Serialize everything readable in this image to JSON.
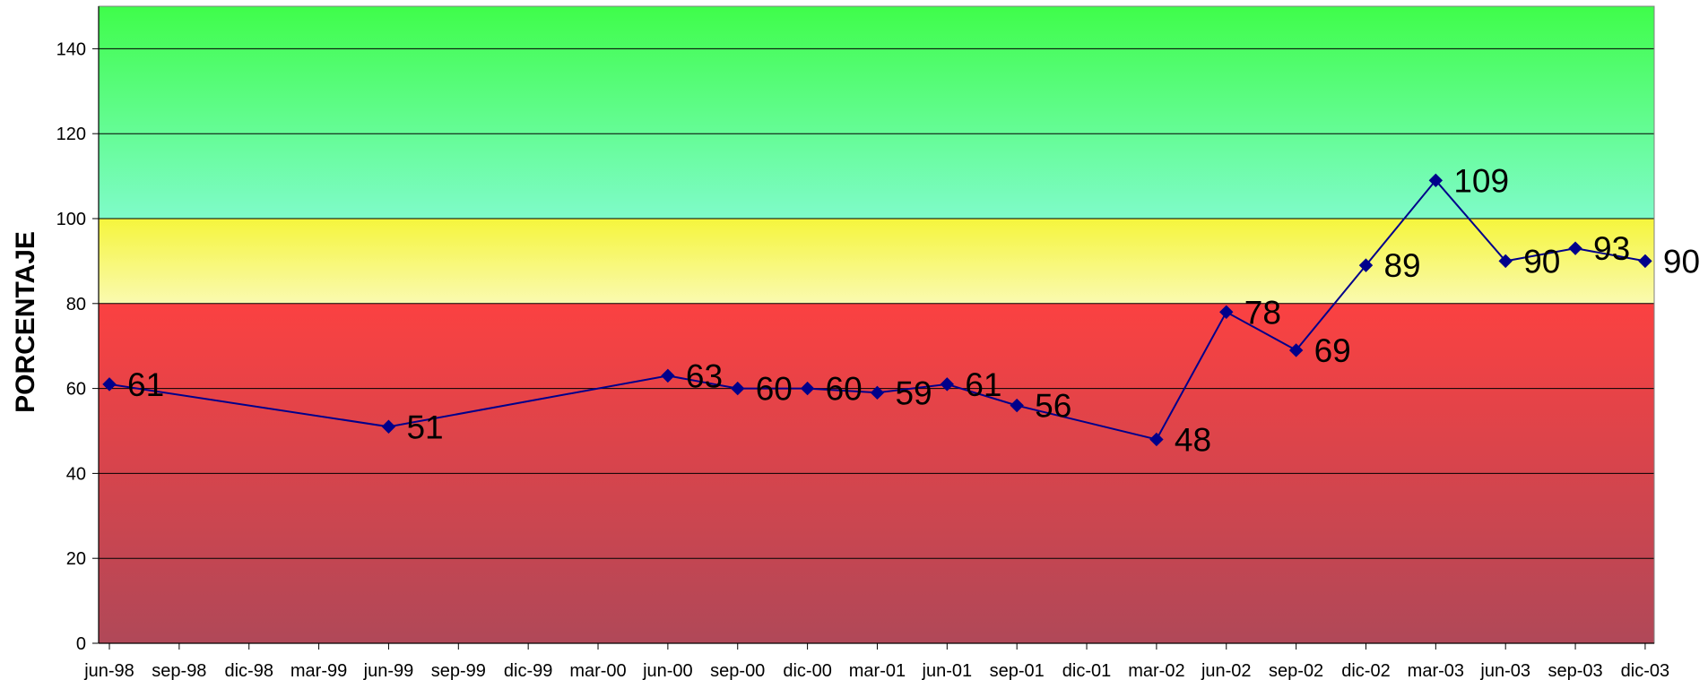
{
  "chart_data": {
    "type": "line",
    "title": "",
    "xlabel": "",
    "ylabel": "PORCENTAJE",
    "ylim": [
      0,
      150
    ],
    "yticks": [
      0,
      20,
      40,
      60,
      80,
      100,
      120,
      140
    ],
    "grid": true,
    "legend": "none",
    "categories": [
      "jun-98",
      "sep-98",
      "dic-98",
      "mar-99",
      "jun-99",
      "sep-99",
      "dic-99",
      "mar-00",
      "jun-00",
      "sep-00",
      "dic-00",
      "mar-01",
      "jun-01",
      "sep-01",
      "dic-01",
      "mar-02",
      "jun-02",
      "sep-02",
      "dic-02",
      "mar-03",
      "jun-03",
      "sep-03",
      "dic-03"
    ],
    "series": [
      {
        "color": "#00008b",
        "marker": "diamond",
        "points": [
          {
            "x": "jun-98",
            "y": 61
          },
          {
            "x": "jun-99",
            "y": 51
          },
          {
            "x": "jun-00",
            "y": 63
          },
          {
            "x": "sep-00",
            "y": 60
          },
          {
            "x": "dic-00",
            "y": 60
          },
          {
            "x": "mar-01",
            "y": 59
          },
          {
            "x": "jun-01",
            "y": 61
          },
          {
            "x": "sep-01",
            "y": 56
          },
          {
            "x": "mar-02",
            "y": 48
          },
          {
            "x": "jun-02",
            "y": 78
          },
          {
            "x": "sep-02",
            "y": 69
          },
          {
            "x": "dic-02",
            "y": 89
          },
          {
            "x": "mar-03",
            "y": 109
          },
          {
            "x": "jun-03",
            "y": 90
          },
          {
            "x": "sep-03",
            "y": 93
          },
          {
            "x": "dic-03",
            "y": 90
          }
        ]
      }
    ],
    "bands": [
      {
        "from": 0,
        "to": 80,
        "color_top": "#fb4141",
        "color_bottom": "#b04858"
      },
      {
        "from": 80,
        "to": 100,
        "color_top": "#f5f53c",
        "color_bottom": "#fafab0"
      },
      {
        "from": 100,
        "to": 150,
        "color_top": "#3ffd4a",
        "color_bottom": "#7ffbc9"
      }
    ]
  }
}
